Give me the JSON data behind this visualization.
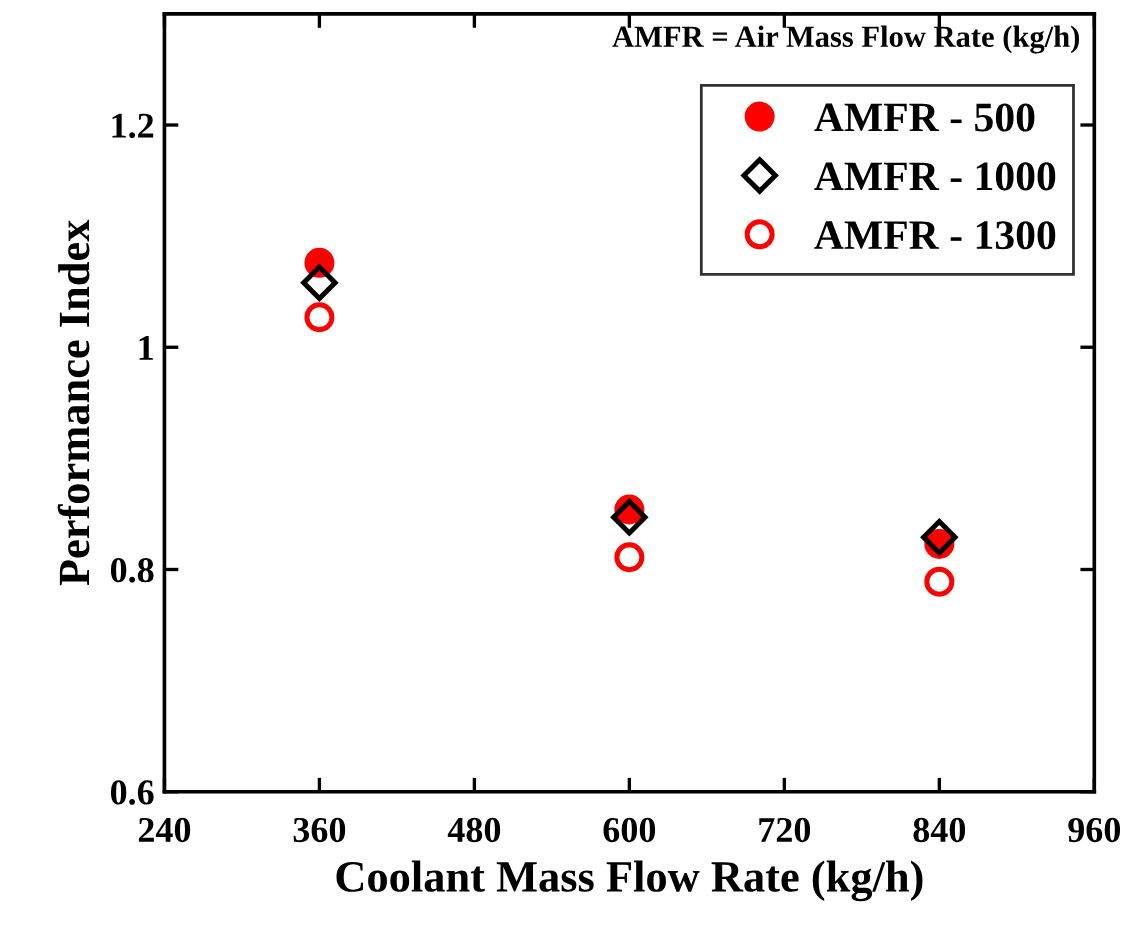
{
  "chart_data": {
    "type": "scatter",
    "xlabel": "Coolant Mass Flow Rate (kg/h)",
    "ylabel": "Performance Index",
    "annotations": [
      "AMFR = Air Mass Flow Rate (kg/h)"
    ],
    "x": [
      360,
      600,
      840
    ],
    "series": [
      {
        "name": "AMFR - 500",
        "color": "#ff0000",
        "values": [
          1.076,
          0.854,
          0.823
        ],
        "marker": "circle"
      },
      {
        "name": "AMFR - 1000",
        "color": "#000000",
        "values": [
          1.058,
          0.847,
          0.829
        ],
        "marker": "diamond"
      },
      {
        "name": "AMFR - 1300",
        "color": "#ff0000",
        "values": [
          1.027,
          0.811,
          0.789
        ],
        "marker": "circle"
      }
    ],
    "xlim": [
      240,
      960
    ],
    "xticks": [
      240,
      360,
      480,
      600,
      720,
      840,
      960
    ],
    "ylim": [
      0.6,
      1.3
    ],
    "yticks": [
      {
        "value": 0.6,
        "label": "0.6"
      },
      {
        "value": 0.8,
        "label": "0.8"
      },
      {
        "value": 1,
        "label": "1"
      },
      {
        "value": 1.2,
        "label": "1.2"
      }
    ],
    "grid": false,
    "legend": "top right"
  }
}
